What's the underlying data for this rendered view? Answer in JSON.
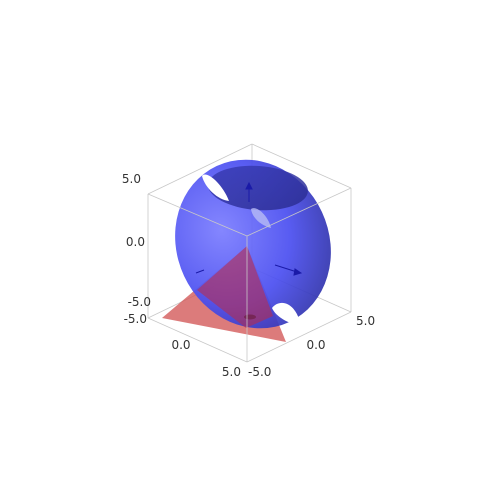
{
  "figure": {
    "type": "3d-surface-plot",
    "surfaces": [
      {
        "kind": "ellipsoid",
        "color": "#4a4ef0",
        "holes": 3
      },
      {
        "kind": "plane",
        "color": "#d35a5a"
      }
    ],
    "axes": {
      "z": {
        "range": [
          -5.0,
          5.0
        ],
        "ticks": [
          "5.0",
          "0.0",
          "-5.0"
        ]
      },
      "x": {
        "range": [
          -5.0,
          5.0
        ],
        "ticks": [
          "-5.0",
          "0.0",
          "5.0"
        ]
      },
      "y": {
        "range": [
          -5.0,
          5.0
        ],
        "ticks": [
          "-5.0",
          "0.0",
          "5.0"
        ]
      }
    },
    "bounding_box": true,
    "arrows_color": "#1a1aa8"
  }
}
